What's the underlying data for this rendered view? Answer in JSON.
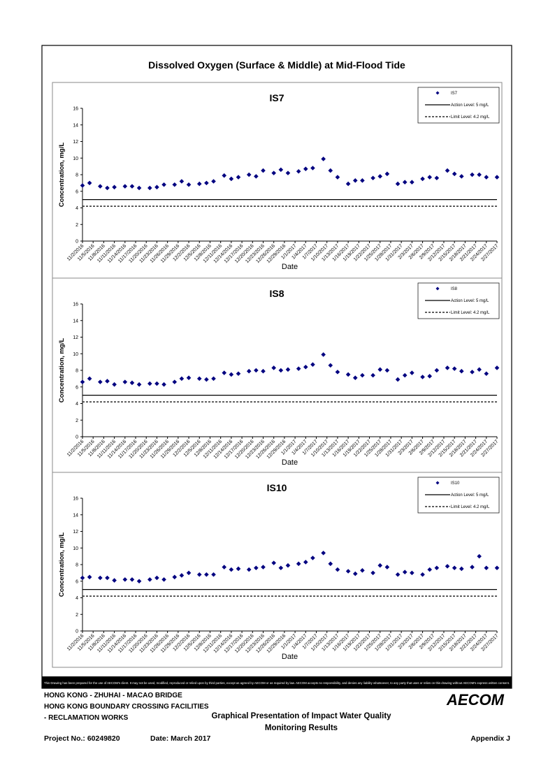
{
  "title": "Dissolved Oxygen (Surface & Middle) at Mid-Flood Tide",
  "chart_data": [
    {
      "type": "scatter",
      "title": "IS7",
      "xlabel": "Date",
      "ylabel": "Concentration, mg/L",
      "x": [
        "11/2/2016",
        "11/4/2016",
        "11/7/2016",
        "11/9/2016",
        "11/11/2016",
        "11/14/2016",
        "11/16/2016",
        "11/18/2016",
        "11/21/2016",
        "11/23/2016",
        "11/25/2016",
        "11/28/2016",
        "11/30/2016",
        "12/2/2016",
        "12/5/2016",
        "12/7/2016",
        "12/9/2016",
        "12/12/2016",
        "12/14/2016",
        "12/16/2016",
        "12/19/2016",
        "12/21/2016",
        "12/23/2016",
        "12/26/2016",
        "12/28/2016",
        "12/30/2016",
        "1/2/2017",
        "1/4/2017",
        "1/6/2017",
        "1/9/2017",
        "1/11/2017",
        "1/13/2017",
        "1/16/2017",
        "1/18/2017",
        "1/20/2017",
        "1/23/2017",
        "1/25/2017",
        "1/27/2017",
        "1/30/2017",
        "2/1/2017",
        "2/3/2017",
        "2/6/2017",
        "2/8/2017",
        "2/10/2017",
        "2/13/2017",
        "2/15/2017",
        "2/17/2017",
        "2/20/2017",
        "2/22/2017",
        "2/24/2017",
        "2/27/2017"
      ],
      "series": [
        {
          "name": "IS7",
          "color": "#000080",
          "values": [
            6.7,
            7.0,
            6.6,
            6.4,
            6.5,
            6.6,
            6.6,
            6.4,
            6.4,
            6.5,
            6.8,
            6.8,
            7.2,
            6.8,
            6.9,
            7.0,
            7.2,
            7.9,
            7.5,
            7.7,
            8.0,
            7.8,
            8.5,
            8.2,
            8.6,
            8.2,
            8.4,
            8.7,
            8.8,
            9.9,
            8.5,
            7.7,
            6.9,
            7.3,
            7.3,
            7.6,
            7.8,
            8.1,
            6.9,
            7.1,
            7.1,
            7.5,
            7.7,
            7.6,
            8.5,
            8.1,
            7.8,
            8.0,
            8.0,
            7.7,
            7.7
          ]
        }
      ],
      "lines": [
        {
          "name": "Action Level: 5 mg/L",
          "value": 5,
          "style": "solid"
        },
        {
          "name": "Limit Level: 4.2 mg/L",
          "value": 4.2,
          "style": "dashed"
        }
      ],
      "xlim": [
        "11/2/2016",
        "2/27/2017"
      ],
      "xticks": [
        "11/2/2016",
        "11/5/2016",
        "11/8/2016",
        "11/11/2016",
        "11/14/2016",
        "11/17/2016",
        "11/20/2016",
        "11/23/2016",
        "11/26/2016",
        "11/29/2016",
        "12/2/2016",
        "12/5/2016",
        "12/8/2016",
        "12/11/2016",
        "12/14/2016",
        "12/17/2016",
        "12/20/2016",
        "12/23/2016",
        "12/26/2016",
        "12/29/2016",
        "1/1/2017",
        "1/4/2017",
        "1/7/2017",
        "1/10/2017",
        "1/13/2017",
        "1/16/2017",
        "1/19/2017",
        "1/22/2017",
        "1/25/2017",
        "1/28/2017",
        "1/31/2017",
        "2/3/2017",
        "2/6/2017",
        "2/9/2017",
        "2/12/2017",
        "2/15/2017",
        "2/18/2017",
        "2/21/2017",
        "2/24/2017",
        "2/27/2017"
      ],
      "ylim": [
        0,
        16
      ],
      "yticks": [
        0,
        2,
        4,
        6,
        8,
        10,
        12,
        14,
        16
      ],
      "legend": "upper right"
    },
    {
      "type": "scatter",
      "title": "IS8",
      "xlabel": "Date",
      "ylabel": "Concentration, mg/L",
      "x": [
        "11/2/2016",
        "11/4/2016",
        "11/7/2016",
        "11/9/2016",
        "11/11/2016",
        "11/14/2016",
        "11/16/2016",
        "11/18/2016",
        "11/21/2016",
        "11/23/2016",
        "11/25/2016",
        "11/28/2016",
        "11/30/2016",
        "12/2/2016",
        "12/5/2016",
        "12/7/2016",
        "12/9/2016",
        "12/12/2016",
        "12/14/2016",
        "12/16/2016",
        "12/19/2016",
        "12/21/2016",
        "12/23/2016",
        "12/26/2016",
        "12/28/2016",
        "12/30/2016",
        "1/2/2017",
        "1/4/2017",
        "1/6/2017",
        "1/9/2017",
        "1/11/2017",
        "1/13/2017",
        "1/16/2017",
        "1/18/2017",
        "1/20/2017",
        "1/23/2017",
        "1/25/2017",
        "1/27/2017",
        "1/30/2017",
        "2/1/2017",
        "2/3/2017",
        "2/6/2017",
        "2/8/2017",
        "2/10/2017",
        "2/13/2017",
        "2/15/2017",
        "2/17/2017",
        "2/20/2017",
        "2/22/2017",
        "2/24/2017",
        "2/27/2017"
      ],
      "series": [
        {
          "name": "IS8",
          "color": "#000080",
          "values": [
            6.6,
            7.0,
            6.6,
            6.7,
            6.3,
            6.6,
            6.5,
            6.3,
            6.4,
            6.4,
            6.3,
            6.6,
            7.0,
            7.1,
            7.0,
            6.9,
            7.0,
            7.7,
            7.5,
            7.6,
            7.9,
            8.0,
            7.9,
            8.3,
            8.0,
            8.1,
            8.2,
            8.4,
            8.7,
            9.9,
            8.6,
            7.8,
            7.5,
            7.1,
            7.4,
            7.4,
            8.1,
            8.0,
            6.9,
            7.4,
            7.7,
            7.2,
            7.3,
            8.0,
            8.3,
            8.2,
            7.9,
            7.8,
            8.1,
            7.6,
            8.3
          ]
        }
      ],
      "lines": [
        {
          "name": "Action Level: 5 mg/L",
          "value": 5,
          "style": "solid"
        },
        {
          "name": "Limit Level: 4.2 mg/L",
          "value": 4.2,
          "style": "dashed"
        }
      ],
      "xlim": [
        "11/2/2016",
        "2/27/2017"
      ],
      "xticks": [
        "11/2/2016",
        "11/5/2016",
        "11/8/2016",
        "11/11/2016",
        "11/14/2016",
        "11/17/2016",
        "11/20/2016",
        "11/23/2016",
        "11/26/2016",
        "11/29/2016",
        "12/2/2016",
        "12/5/2016",
        "12/8/2016",
        "12/11/2016",
        "12/14/2016",
        "12/17/2016",
        "12/20/2016",
        "12/23/2016",
        "12/26/2016",
        "12/29/2016",
        "1/1/2017",
        "1/4/2017",
        "1/7/2017",
        "1/10/2017",
        "1/13/2017",
        "1/16/2017",
        "1/19/2017",
        "1/22/2017",
        "1/25/2017",
        "1/28/2017",
        "1/31/2017",
        "2/3/2017",
        "2/6/2017",
        "2/9/2017",
        "2/12/2017",
        "2/15/2017",
        "2/18/2017",
        "2/21/2017",
        "2/24/2017",
        "2/27/2017"
      ],
      "ylim": [
        0,
        16
      ],
      "yticks": [
        0,
        2,
        4,
        6,
        8,
        10,
        12,
        14,
        16
      ],
      "legend": "upper right"
    },
    {
      "type": "scatter",
      "title": "IS10",
      "xlabel": "Date",
      "ylabel": "Concentration, mg/L",
      "x": [
        "11/2/2016",
        "11/4/2016",
        "11/7/2016",
        "11/9/2016",
        "11/11/2016",
        "11/14/2016",
        "11/16/2016",
        "11/18/2016",
        "11/21/2016",
        "11/23/2016",
        "11/25/2016",
        "11/28/2016",
        "11/30/2016",
        "12/2/2016",
        "12/5/2016",
        "12/7/2016",
        "12/9/2016",
        "12/12/2016",
        "12/14/2016",
        "12/16/2016",
        "12/19/2016",
        "12/21/2016",
        "12/23/2016",
        "12/26/2016",
        "12/28/2016",
        "12/30/2016",
        "1/2/2017",
        "1/4/2017",
        "1/6/2017",
        "1/9/2017",
        "1/11/2017",
        "1/13/2017",
        "1/16/2017",
        "1/18/2017",
        "1/20/2017",
        "1/23/2017",
        "1/25/2017",
        "1/27/2017",
        "1/30/2017",
        "2/1/2017",
        "2/3/2017",
        "2/6/2017",
        "2/8/2017",
        "2/10/2017",
        "2/13/2017",
        "2/15/2017",
        "2/17/2017",
        "2/20/2017",
        "2/22/2017",
        "2/24/2017",
        "2/27/2017"
      ],
      "series": [
        {
          "name": "IS10",
          "color": "#000080",
          "values": [
            6.4,
            6.5,
            6.4,
            6.4,
            6.1,
            6.2,
            6.2,
            6.0,
            6.2,
            6.4,
            6.2,
            6.5,
            6.7,
            7.0,
            6.8,
            6.8,
            6.8,
            7.7,
            7.4,
            7.5,
            7.4,
            7.6,
            7.7,
            8.2,
            7.6,
            7.9,
            8.1,
            8.3,
            8.8,
            9.4,
            8.1,
            7.4,
            7.2,
            6.9,
            7.3,
            7.0,
            7.9,
            7.7,
            6.8,
            7.1,
            7.0,
            6.8,
            7.4,
            7.6,
            7.8,
            7.6,
            7.5,
            7.7,
            9.0,
            7.6,
            7.6
          ]
        }
      ],
      "lines": [
        {
          "name": "Action Level: 5 mg/L",
          "value": 5,
          "style": "solid"
        },
        {
          "name": "Limit Level: 4.2 mg/L",
          "value": 4.2,
          "style": "dashed"
        }
      ],
      "xlim": [
        "11/2/2016",
        "2/27/2017"
      ],
      "xticks": [
        "11/2/2016",
        "11/5/2016",
        "11/8/2016",
        "11/11/2016",
        "11/14/2016",
        "11/17/2016",
        "11/20/2016",
        "11/23/2016",
        "11/26/2016",
        "11/29/2016",
        "12/2/2016",
        "12/5/2016",
        "12/8/2016",
        "12/11/2016",
        "12/14/2016",
        "12/17/2016",
        "12/20/2016",
        "12/23/2016",
        "12/26/2016",
        "12/29/2016",
        "1/1/2017",
        "1/4/2017",
        "1/7/2017",
        "1/10/2017",
        "1/13/2017",
        "1/16/2017",
        "1/19/2017",
        "1/22/2017",
        "1/25/2017",
        "1/28/2017",
        "1/31/2017",
        "2/3/2017",
        "2/6/2017",
        "2/9/2017",
        "2/12/2017",
        "2/15/2017",
        "2/18/2017",
        "2/21/2017",
        "2/24/2017",
        "2/27/2017"
      ],
      "ylim": [
        0,
        16
      ],
      "yticks": [
        0,
        2,
        4,
        6,
        8,
        10,
        12,
        14,
        16
      ],
      "legend": "upper right"
    }
  ],
  "disclaimer": "This Drawing has been prepared for the use of AECOM's client. It may not be used, modified, reproduced or relied upon by third parties, except as agreed by AECOM or as required by law. AECOM accepts no responsibility, and denies any liability whatsoever, to any party that uses or relies on this drawing without AECOM's express written consent.",
  "footer": {
    "project_lines": [
      "HONG KONG - ZHUHAI - MACAO BRIDGE",
      "HONG KONG BOUNDARY CROSSING FACILITIES",
      "- RECLAMATION WORKS"
    ],
    "logo": "AECOM",
    "caption": [
      "Graphical Presentation of Impact Water Quality",
      "Monitoring Results"
    ],
    "project_no": "Project No.: 60249820",
    "date": "Date: March 2017",
    "appendix": "Appendix J"
  }
}
